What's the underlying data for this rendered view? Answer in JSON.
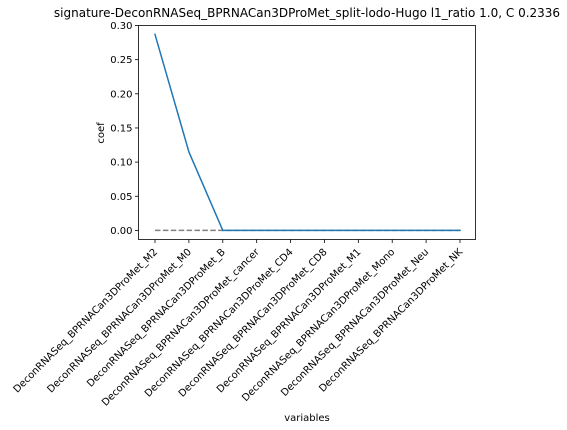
{
  "chart_data": {
    "type": "line",
    "title": "signature-DeconRNASeq_BPRNACan3DProMet_split-lodo-Hugo l1_ratio 1.0, C 0.2336",
    "xlabel": "variables",
    "ylabel": "coef",
    "categories": [
      "DeconRNASeq_BPRNACan3DProMet_M2",
      "DeconRNASeq_BPRNACan3DProMet_M0",
      "DeconRNASeq_BPRNACan3DProMet_B",
      "DeconRNASeq_BPRNACan3DProMet_cancer",
      "DeconRNASeq_BPRNACan3DProMet_CD4",
      "DeconRNASeq_BPRNACan3DProMet_CD8",
      "DeconRNASeq_BPRNACan3DProMet_M1",
      "DeconRNASeq_BPRNACan3DProMet_Mono",
      "DeconRNASeq_BPRNACan3DProMet_Neu",
      "DeconRNASeq_BPRNACan3DProMet_NK"
    ],
    "series": [
      {
        "values": [
          0.287,
          0.115,
          0.0,
          0.0,
          0.0,
          0.0,
          0.0,
          0.0,
          0.0,
          0.0
        ],
        "color": "#1f77b4"
      }
    ],
    "reference_line": {
      "y": 0.0,
      "style": "dashed",
      "color": "#808080"
    },
    "ylim": [
      -0.0133,
      0.3
    ],
    "yticks": [
      0.0,
      0.05,
      0.1,
      0.15,
      0.2,
      0.25,
      0.3
    ],
    "ytick_labels": [
      "0.00",
      "0.05",
      "0.10",
      "0.15",
      "0.20",
      "0.25",
      "0.30"
    ],
    "grid": false,
    "legend": "none"
  }
}
